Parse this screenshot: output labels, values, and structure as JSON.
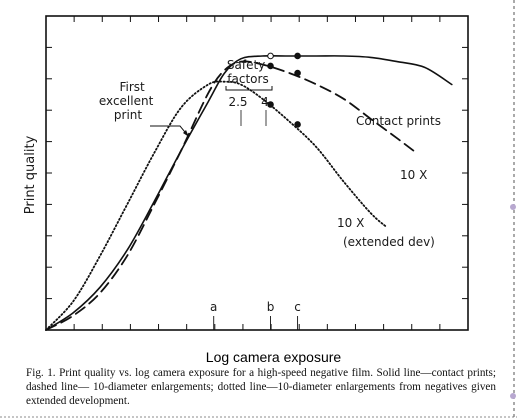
{
  "chart_data": {
    "type": "line",
    "xlabel": "Log camera exposure",
    "ylabel": "Print quality",
    "x_tick_labels": [
      {
        "label": "a",
        "x": 3.1
      },
      {
        "label": "b",
        "x": 4.15
      },
      {
        "label": "c",
        "x": 4.65
      }
    ],
    "series": [
      {
        "name": "Contact prints",
        "style": "solid",
        "points": [
          [
            0,
            0
          ],
          [
            0.5,
            0.06
          ],
          [
            1,
            0.15
          ],
          [
            1.5,
            0.28
          ],
          [
            2,
            0.45
          ],
          [
            2.5,
            0.63
          ],
          [
            3,
            0.8
          ],
          [
            3.3,
            0.9
          ],
          [
            3.6,
            0.95
          ],
          [
            4,
            0.96
          ],
          [
            4.5,
            0.96
          ],
          [
            5,
            0.96
          ],
          [
            5.5,
            0.96
          ],
          [
            6,
            0.955
          ],
          [
            6.5,
            0.94
          ],
          [
            7,
            0.92
          ],
          [
            7.5,
            0.86
          ]
        ]
      },
      {
        "name": "10 X",
        "style": "dashed",
        "points": [
          [
            0,
            0
          ],
          [
            0.5,
            0.05
          ],
          [
            1,
            0.13
          ],
          [
            1.5,
            0.26
          ],
          [
            2,
            0.44
          ],
          [
            2.5,
            0.63
          ],
          [
            3,
            0.83
          ],
          [
            3.3,
            0.91
          ],
          [
            3.6,
            0.94
          ],
          [
            4,
            0.93
          ],
          [
            4.5,
            0.9
          ],
          [
            5,
            0.86
          ],
          [
            5.5,
            0.81
          ],
          [
            6,
            0.74
          ],
          [
            6.5,
            0.67
          ],
          [
            6.85,
            0.62
          ]
        ]
      },
      {
        "name": "10 X (extended dev)",
        "style": "dotted",
        "points": [
          [
            0,
            0
          ],
          [
            0.5,
            0.1
          ],
          [
            1,
            0.26
          ],
          [
            1.5,
            0.44
          ],
          [
            2,
            0.62
          ],
          [
            2.5,
            0.78
          ],
          [
            3,
            0.86
          ],
          [
            3.3,
            0.87
          ],
          [
            3.6,
            0.86
          ],
          [
            4,
            0.81
          ],
          [
            4.5,
            0.73
          ],
          [
            5,
            0.64
          ],
          [
            5.5,
            0.52
          ],
          [
            6,
            0.41
          ],
          [
            6.3,
            0.36
          ]
        ]
      }
    ],
    "markers": [
      {
        "series": "Contact prints",
        "x": 4.15,
        "y": 0.96,
        "fill": "open"
      },
      {
        "series": "Contact prints",
        "x": 4.65,
        "y": 0.96,
        "fill": "solid"
      },
      {
        "series": "10 X",
        "x": 4.15,
        "y": 0.925,
        "fill": "solid"
      },
      {
        "series": "10 X",
        "x": 4.65,
        "y": 0.9,
        "fill": "solid"
      },
      {
        "series": "10 X (extended dev)",
        "x": 4.15,
        "y": 0.79,
        "fill": "solid"
      },
      {
        "series": "10 X (extended dev)",
        "x": 4.65,
        "y": 0.72,
        "fill": "solid"
      }
    ],
    "annotations": {
      "first_excellent": "First\nexcellent\nprint",
      "safety_title": "Safety\nfactors",
      "safety_values": [
        "2.5",
        "4"
      ],
      "series_labels": {
        "contact": "Contact prints",
        "tenx": "10 X",
        "tenx_ext_1": "10 X",
        "tenx_ext_2": "(extended dev)"
      }
    },
    "grid": false,
    "xlim": [
      0,
      7.8
    ],
    "ylim": [
      0,
      1.1
    ]
  },
  "caption": "Fig. 1. Print quality vs. log camera exposure for a high-speed negative film. Solid line—contact prints; dashed line— 10-diameter enlargements; dotted line—10-diameter enlargements from negatives given extended development."
}
